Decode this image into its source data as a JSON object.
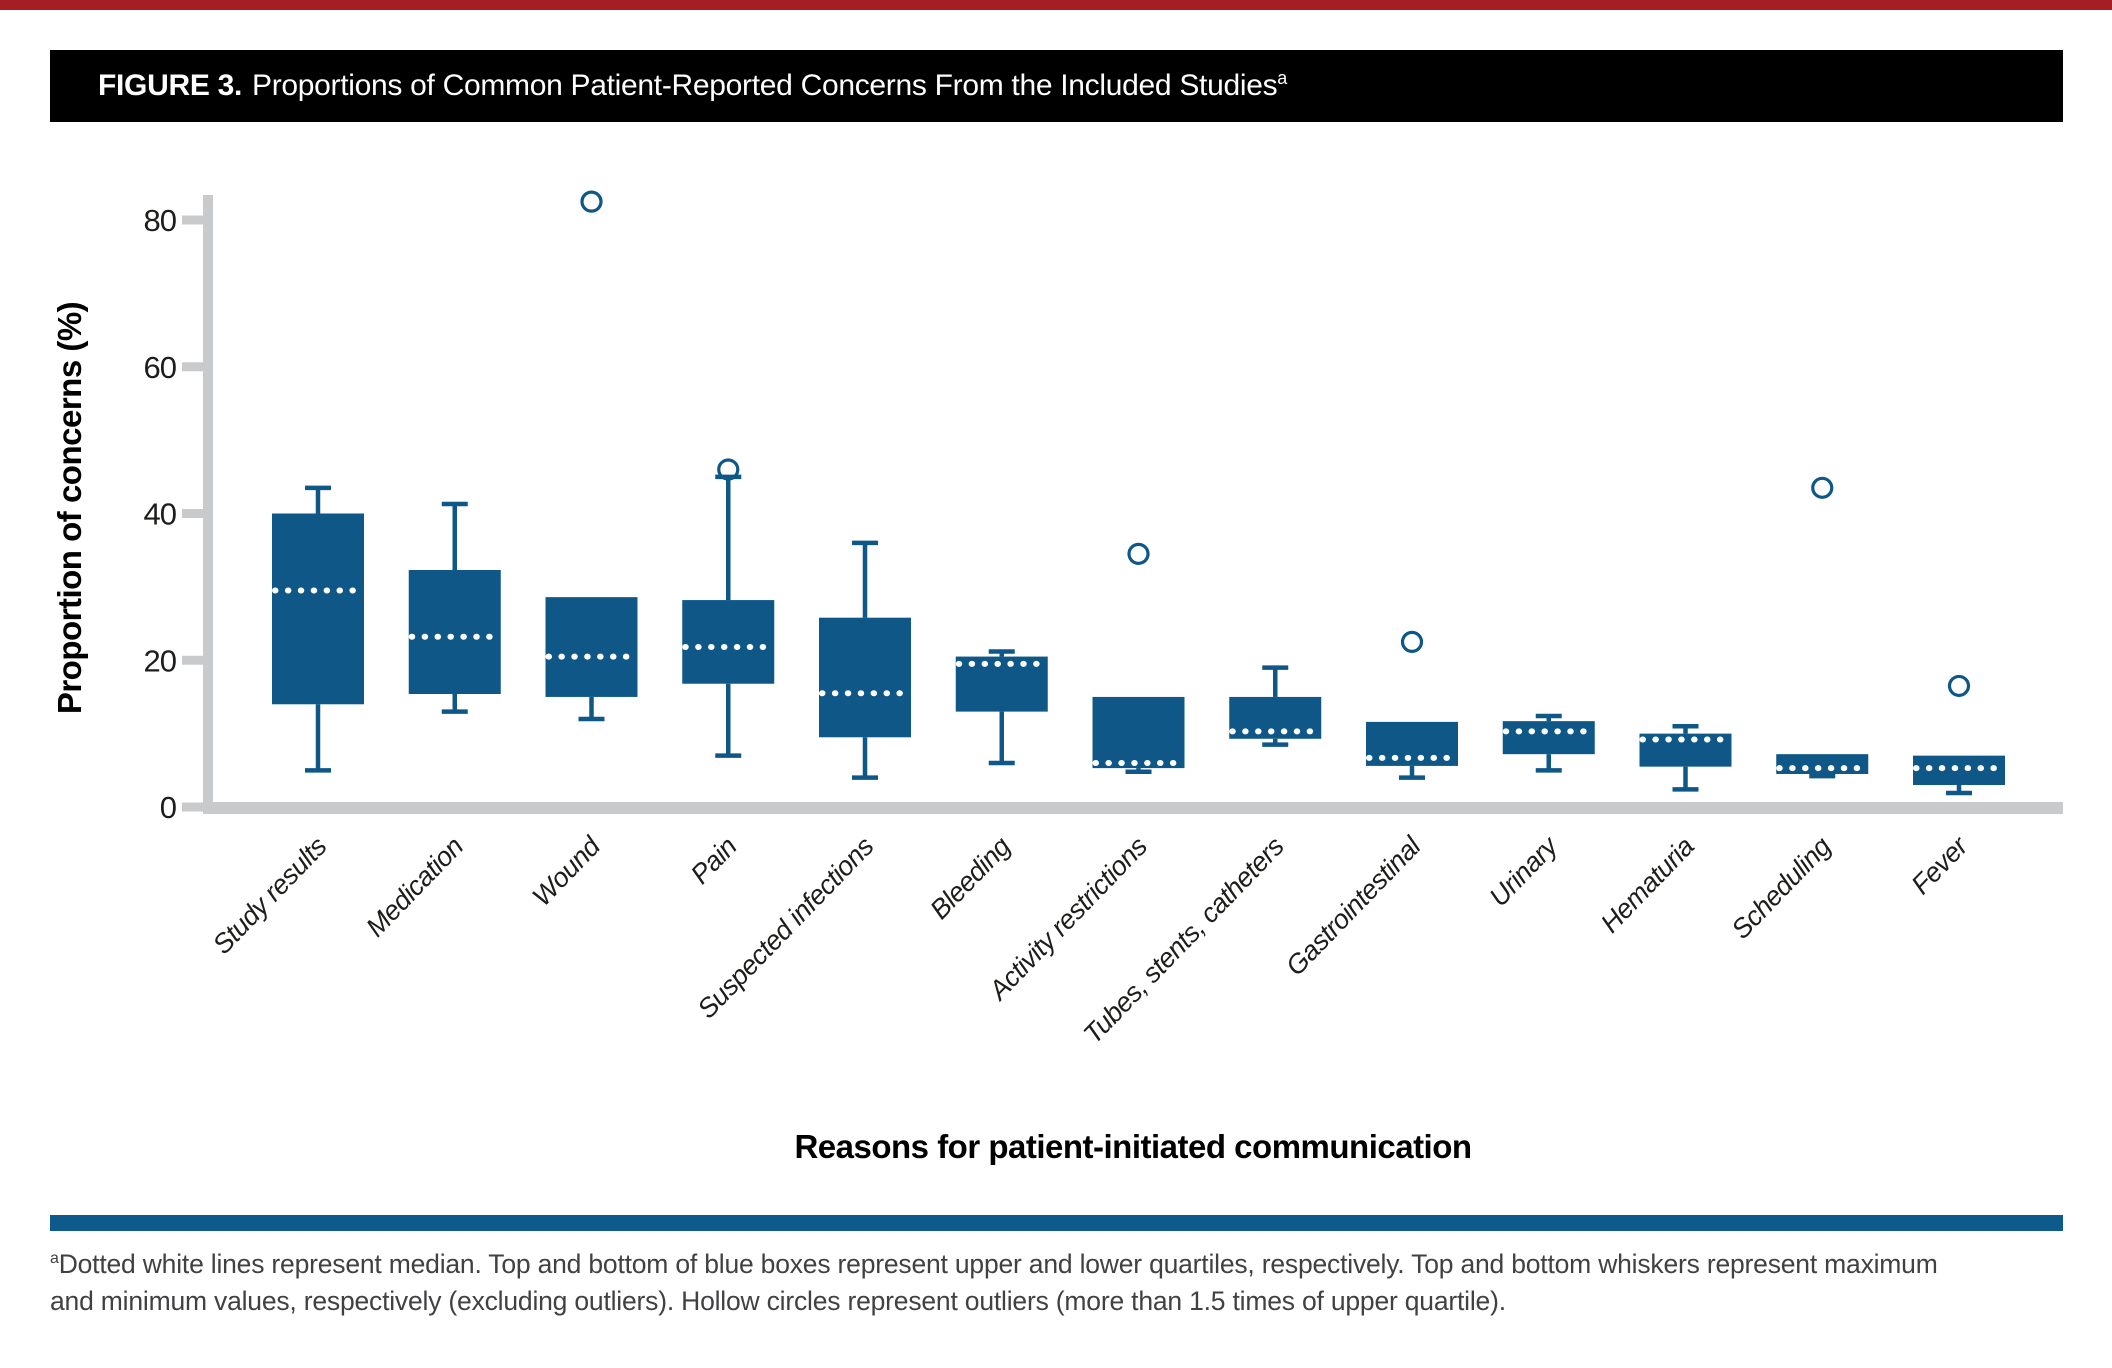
{
  "page": {
    "top_bar_color": "#a51e24",
    "background": "#ffffff"
  },
  "figure_header": {
    "label": "FIGURE 3.",
    "title": "Proportions of Common Patient-Reported Concerns From the Included Studies",
    "superscript": "a",
    "bg_color": "#000000",
    "text_color": "#ffffff"
  },
  "chart_data": {
    "type": "box",
    "xlabel": "Reasons for patient-initiated communication",
    "ylabel": "Proportion of concerns (%)",
    "ylim": [
      0,
      80
    ],
    "yticks": [
      0,
      20,
      40,
      60,
      80
    ],
    "grid": false,
    "legend": "none",
    "box_color": "#0e5787",
    "axis_color": "#c9cacb",
    "median_line": "white dotted",
    "categories": [
      "Study results",
      "Medication",
      "Wound",
      "Pain",
      "Suspected infections",
      "Bleeding",
      "Activity restrictions",
      "Tubes, stents, catheters",
      "Gastrointestinal",
      "Urinary",
      "Hematuria",
      "Scheduling",
      "Fever"
    ],
    "series": [
      {
        "name": "Study results",
        "min": 5.0,
        "q1": 14.0,
        "median": 29.5,
        "q3": 40.0,
        "max": 43.5,
        "outliers": []
      },
      {
        "name": "Medication",
        "min": 13.0,
        "q1": 15.4,
        "median": 23.2,
        "q3": 32.3,
        "max": 41.3,
        "outliers": []
      },
      {
        "name": "Wound",
        "min": 12.0,
        "q1": 15.0,
        "median": 20.5,
        "q3": 28.6,
        "max": 28.6,
        "outliers": [
          82.5
        ]
      },
      {
        "name": "Pain",
        "min": 7.0,
        "q1": 16.8,
        "median": 21.8,
        "q3": 28.2,
        "max": 45.0,
        "outliers": [
          46.0
        ]
      },
      {
        "name": "Suspected infections",
        "min": 4.0,
        "q1": 9.5,
        "median": 15.5,
        "q3": 25.8,
        "max": 36.0,
        "outliers": []
      },
      {
        "name": "Bleeding",
        "min": 6.0,
        "q1": 13.0,
        "median": 19.5,
        "q3": 20.5,
        "max": 21.2,
        "outliers": []
      },
      {
        "name": "Activity restrictions",
        "min": 4.8,
        "q1": 5.3,
        "median": 6.0,
        "q3": 15.0,
        "max": 15.0,
        "outliers": [
          34.5
        ]
      },
      {
        "name": "Tubes, stents, catheters",
        "min": 8.5,
        "q1": 9.3,
        "median": 10.3,
        "q3": 15.0,
        "max": 19.0,
        "outliers": []
      },
      {
        "name": "Gastrointestinal",
        "min": 4.0,
        "q1": 5.6,
        "median": 6.7,
        "q3": 11.6,
        "max": 11.6,
        "outliers": [
          22.5
        ]
      },
      {
        "name": "Urinary",
        "min": 5.0,
        "q1": 7.2,
        "median": 10.3,
        "q3": 11.7,
        "max": 12.4,
        "outliers": []
      },
      {
        "name": "Hematuria",
        "min": 2.4,
        "q1": 5.5,
        "median": 9.2,
        "q3": 10.0,
        "max": 11.0,
        "outliers": []
      },
      {
        "name": "Scheduling",
        "min": 4.2,
        "q1": 4.5,
        "median": 5.3,
        "q3": 7.2,
        "max": 7.2,
        "outliers": [
          43.5
        ]
      },
      {
        "name": "Fever",
        "min": 1.9,
        "q1": 3.0,
        "median": 5.3,
        "q3": 7.0,
        "max": 7.0,
        "outliers": [
          16.5
        ]
      }
    ]
  },
  "footnote": {
    "superscript": "a",
    "line1": "Dotted white lines represent median. Top and bottom of blue boxes represent upper and lower quartiles, respectively. Top and bottom whiskers represent maximum",
    "line2": "and minimum values, respectively (excluding outliers). Hollow circles represent outliers (more than 1.5 times of upper quartile).",
    "rule_color": "#0e5a8c"
  }
}
